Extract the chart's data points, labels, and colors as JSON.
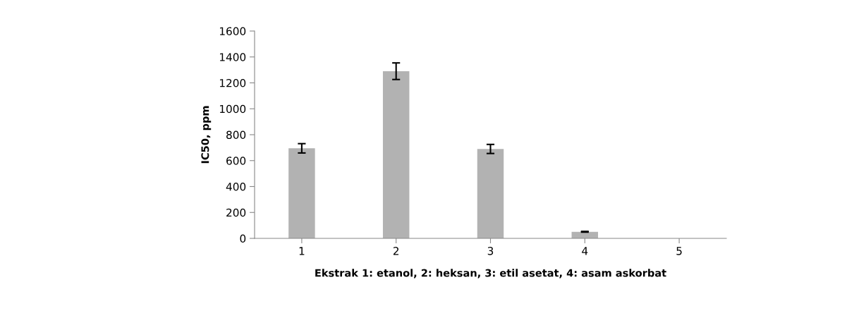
{
  "chart_data": {
    "type": "bar",
    "xlabel": "Ekstrak 1: etanol, 2: heksan, 3: etil asetat, 4: asam askorbat",
    "ylabel": "IC50, ppm",
    "categories": [
      "1",
      "2",
      "3",
      "4",
      "5"
    ],
    "values": [
      695,
      1290,
      690,
      51,
      null
    ],
    "errors": [
      36,
      64,
      35,
      3,
      null
    ],
    "color": "#b2b2b2",
    "ylim": [
      0,
      1600
    ],
    "yticks": [
      0,
      200,
      400,
      600,
      800,
      1000,
      1200,
      1400,
      1600
    ],
    "grid": false
  }
}
